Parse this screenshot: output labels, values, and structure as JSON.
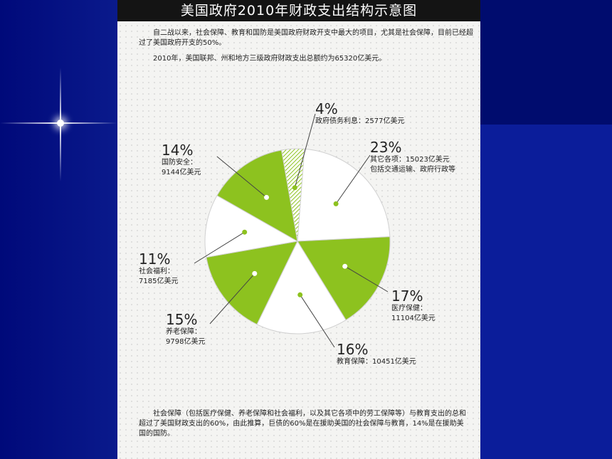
{
  "title": "美国政府2010年财政支出结构示意图",
  "intro": {
    "line1": "自二战以来，社会保障、教育和国防是美国政府财政开支中最大的项目，尤其是社会保障，目前已经超过了美国政府开支的50%。",
    "line2": "2010年，美国联邦、州和地方三级政府财政支出总额约为65320亿美元。"
  },
  "footer": "社会保障（包括医疗保健、养老保障和社会福利，以及其它各项中的劳工保障等）与教育支出的总和超过了美国财政支出的60%，由此推算，巨债的60%是在援助美国的社会保障与教育，14%是在援助美国的国防。",
  "colors": {
    "green": "#8dc21f",
    "white": "#ffffff",
    "stroke": "#d0d0d0"
  },
  "chart_data": {
    "type": "pie",
    "title": "美国政府2010年财政支出结构示意图",
    "slices": [
      {
        "pct_label": "4%",
        "name": "政府债务利息：",
        "amount": "2577亿美元",
        "value": 4,
        "color": "hatch"
      },
      {
        "pct_label": "23%",
        "name": "其它各项：",
        "amount": "15023亿美元",
        "note": "包括交通运输、政府行政等",
        "value": 23,
        "color": "white"
      },
      {
        "pct_label": "17%",
        "name": "医疗保健：",
        "amount": "11104亿美元",
        "value": 17,
        "color": "green"
      },
      {
        "pct_label": "16%",
        "name": "教育保障：",
        "amount": "10451亿美元",
        "value": 16,
        "color": "white"
      },
      {
        "pct_label": "15%",
        "name": "养老保障：",
        "amount": "9798亿美元",
        "value": 15,
        "color": "green"
      },
      {
        "pct_label": "11%",
        "name": "社会福利：",
        "amount": "7185亿美元",
        "value": 11,
        "color": "white"
      },
      {
        "pct_label": "14%",
        "name": "国防安全：",
        "amount": "9144亿美元",
        "value": 14,
        "color": "green"
      }
    ]
  }
}
